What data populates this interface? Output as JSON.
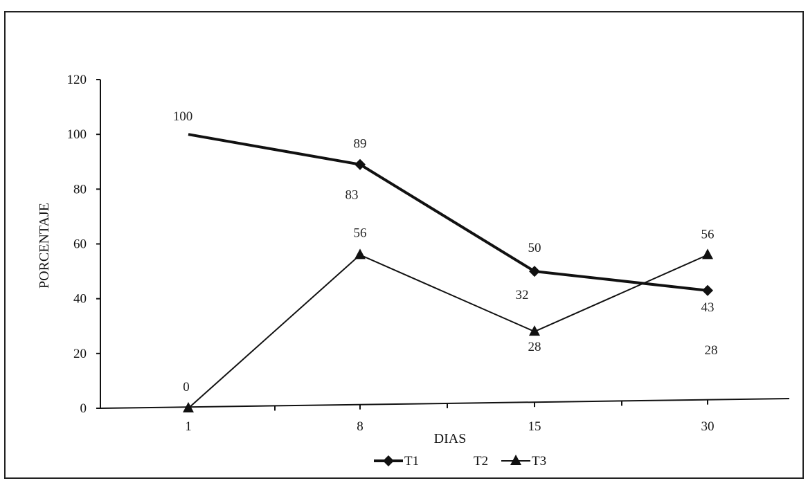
{
  "chart_data": {
    "type": "line",
    "xlabel": "DIAS",
    "ylabel": "PORCENTAJE",
    "categories": [
      "1",
      "8",
      "15",
      "30"
    ],
    "ylim": [
      0,
      120
    ],
    "yticks": [
      "0",
      "20",
      "40",
      "60",
      "80",
      "100",
      "120"
    ],
    "grid": false,
    "legend_position": "bottom",
    "series": [
      {
        "name": "T1",
        "values": [
          100,
          89,
          50,
          43
        ],
        "marker": "diamond",
        "color": "#111111",
        "stroke": "thick",
        "labels": [
          "100",
          "89",
          "50",
          "43"
        ]
      },
      {
        "name": "T2",
        "values": [
          null,
          83,
          32,
          28
        ],
        "marker": "none",
        "color": "#111111",
        "stroke": "none",
        "labels": [
          "",
          "83",
          "32",
          "28"
        ]
      },
      {
        "name": "T3",
        "values": [
          0,
          56,
          28,
          56
        ],
        "marker": "triangle",
        "color": "#111111",
        "stroke": "thin",
        "labels": [
          "0",
          "56",
          "28",
          "56"
        ]
      }
    ]
  }
}
